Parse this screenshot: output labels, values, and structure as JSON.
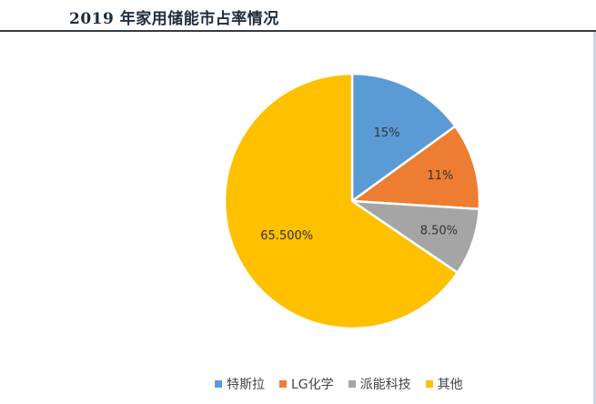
{
  "title": "2019 年家用储能市占率情况",
  "chart_data": {
    "type": "pie",
    "categories": [
      "特斯拉",
      "LG化学",
      "派能科技",
      "其他"
    ],
    "values": [
      15,
      11,
      8.5,
      65.5
    ],
    "data_labels": [
      "15%",
      "11%",
      "8.50%",
      "65.500%"
    ],
    "colors": [
      "#5b9bd5",
      "#ed7d31",
      "#a5a5a5",
      "#ffc000"
    ],
    "legend_position": "bottom",
    "start_angle": "top, clockwise"
  }
}
